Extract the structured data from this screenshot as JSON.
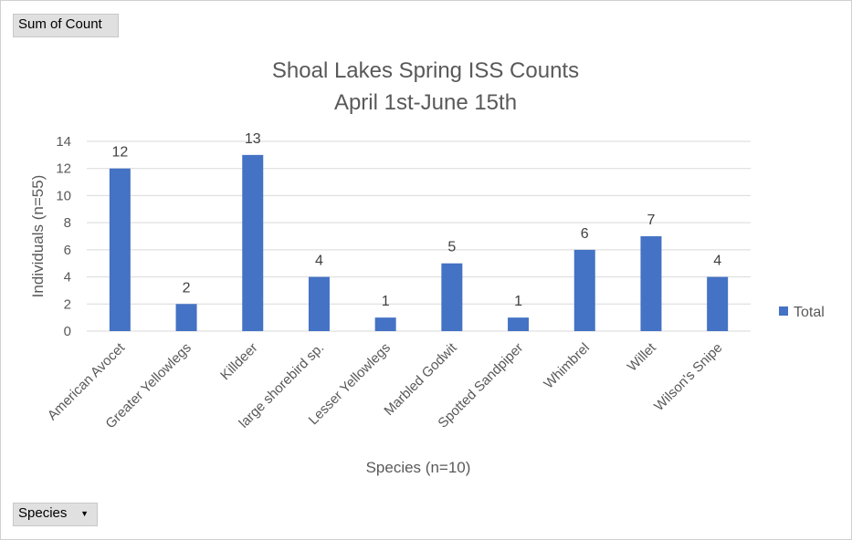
{
  "pivot": {
    "value_field": "Sum of Count",
    "axis_field": "Species",
    "dropdown_icon": "triangle-down-icon"
  },
  "chart_data": {
    "type": "bar",
    "title_line1": "Shoal Lakes Spring ISS Counts",
    "title_line2": "April 1st-June 15th",
    "xlabel": "Species (n=10)",
    "ylabel": "Individuals (n=55)",
    "categories": [
      "American Avocet",
      "Greater Yellowlegs",
      "Killdeer",
      "large shorebird sp.",
      "Lesser Yellowlegs",
      "Marbled Godwit",
      "Spotted Sandpiper",
      "Whimbrel",
      "Willet",
      "Wilson's Snipe"
    ],
    "series": [
      {
        "name": "Total",
        "values": [
          12,
          2,
          13,
          4,
          1,
          5,
          1,
          6,
          7,
          4
        ],
        "color": "#4472C4"
      }
    ],
    "ylim": [
      0,
      14
    ],
    "yticks": [
      0,
      2,
      4,
      6,
      8,
      10,
      12,
      14
    ],
    "grid": true,
    "legend_position": "right",
    "data_labels": true
  }
}
